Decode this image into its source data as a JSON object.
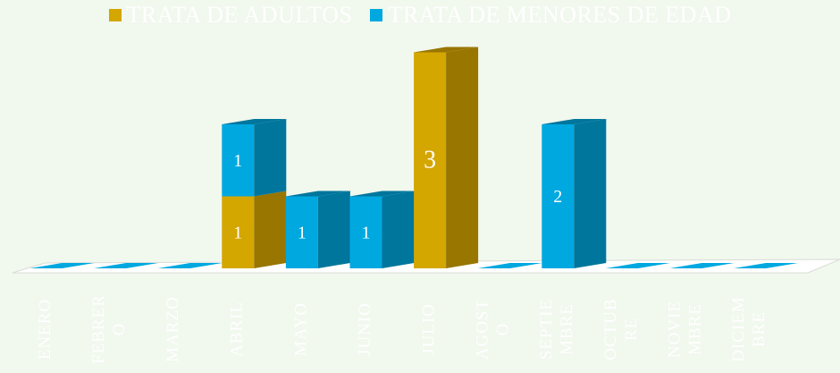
{
  "colors": {
    "adultos": "#d4a600",
    "adultos_side": "#987600",
    "menores": "#00a8e0",
    "menores_side": "#00769c",
    "floor": "#ffffff"
  },
  "chart_data": {
    "type": "bar",
    "stacked": true,
    "three_d": true,
    "legend_position": "top",
    "grid": false,
    "categories": [
      "ENERO",
      "FEBRERO",
      "MARZO",
      "ABRIL",
      "MAYO",
      "JUNIO",
      "JULIO",
      "AGOSTO",
      "SEPTIEMBRE",
      "OCTUBRE",
      "NOVIEMBRE",
      "DICIEMBRE"
    ],
    "tick_labels": [
      [
        "ENERO"
      ],
      [
        "FEBRER",
        "O"
      ],
      [
        "MARZO"
      ],
      [
        "ABRIL"
      ],
      [
        "MAYO"
      ],
      [
        "JUNIO"
      ],
      [
        "JULIO"
      ],
      [
        "AGOST",
        "O"
      ],
      [
        "SEPTIE",
        "MBRE"
      ],
      [
        "OCTUB",
        "RE"
      ],
      [
        "NOVIE",
        "MBRE"
      ],
      [
        "DICIEM",
        "BRE"
      ]
    ],
    "series": [
      {
        "name": "TRATA DE ADULTOS",
        "values": [
          0,
          0,
          0,
          1,
          0,
          0,
          3,
          0,
          0,
          0,
          0,
          0
        ]
      },
      {
        "name": "TRATA DE MENORES DE EDAD",
        "values": [
          0,
          0,
          0,
          1,
          1,
          1,
          0,
          0,
          2,
          0,
          0,
          0
        ]
      }
    ],
    "ylim": [
      0,
      3
    ]
  }
}
